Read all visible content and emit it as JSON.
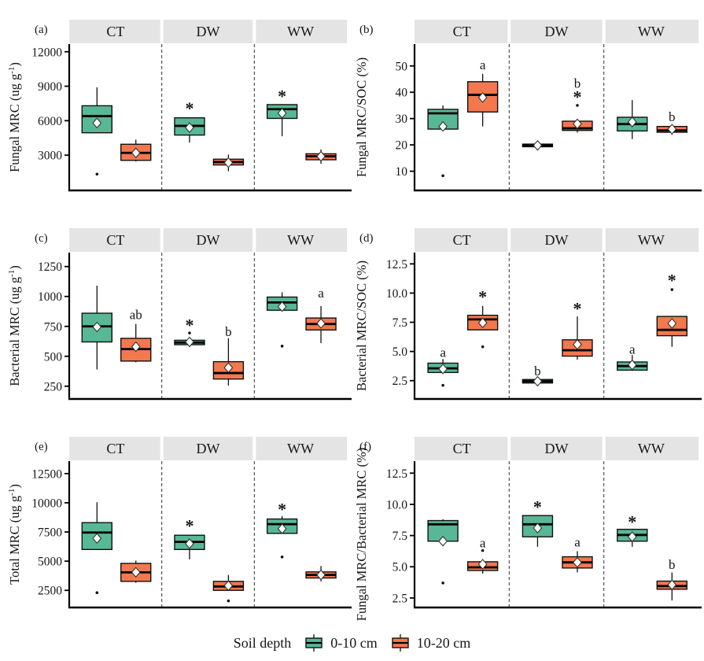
{
  "legend": {
    "title": "Soil depth",
    "entries": [
      {
        "label": "0-10 cm",
        "color": "#58b896"
      },
      {
        "label": "10-20 cm",
        "color": "#f3784e"
      }
    ]
  },
  "style": {
    "strip_bg": "#e4e4e4",
    "background": "#ffffff",
    "box_stroke": "#111111",
    "mean_marker": "white-diamond",
    "separator": "dashed"
  },
  "chart_data": [
    {
      "id": "a",
      "type": "boxplot",
      "label": "(a)",
      "ylabel": "Fungal MRC (ug g⁻¹)",
      "ylim": [
        0,
        12600
      ],
      "yticks": [
        {
          "v": 3000,
          "t": "3000"
        },
        {
          "v": 6000,
          "t": "6000"
        },
        {
          "v": 9000,
          "t": "9000"
        },
        {
          "v": 12000,
          "t": "12000"
        }
      ],
      "facets": [
        "CT",
        "DW",
        "WW"
      ],
      "boxes": [
        {
          "facet": 0,
          "depth": 0,
          "lo": 4950,
          "q1": 4950,
          "med": 6400,
          "q3": 7300,
          "hi": 8900,
          "mean": 5800,
          "outliers": [
            1350
          ],
          "ann": []
        },
        {
          "facet": 0,
          "depth": 1,
          "lo": 2450,
          "q1": 2550,
          "med": 3200,
          "q3": 3950,
          "hi": 4350,
          "mean": 3200,
          "outliers": [],
          "ann": []
        },
        {
          "facet": 1,
          "depth": 0,
          "lo": 4100,
          "q1": 4750,
          "med": 5550,
          "q3": 6250,
          "hi": 6250,
          "mean": 5400,
          "outliers": [],
          "ann": [
            {
              "t": "*",
              "y": 7200
            }
          ]
        },
        {
          "facet": 1,
          "depth": 1,
          "lo": 1600,
          "q1": 2150,
          "med": 2400,
          "q3": 2650,
          "hi": 3050,
          "mean": 2350,
          "outliers": [],
          "ann": []
        },
        {
          "facet": 2,
          "depth": 0,
          "lo": 4650,
          "q1": 6200,
          "med": 7000,
          "q3": 7400,
          "hi": 7450,
          "mean": 6650,
          "outliers": [],
          "ann": [
            {
              "t": "*",
              "y": 8250
            }
          ]
        },
        {
          "facet": 2,
          "depth": 1,
          "lo": 2250,
          "q1": 2600,
          "med": 2900,
          "q3": 3120,
          "hi": 3500,
          "mean": 2900,
          "outliers": [],
          "ann": []
        }
      ]
    },
    {
      "id": "b",
      "type": "boxplot",
      "label": "(b)",
      "ylabel": "Fungal MRC/SOC (%)",
      "ylim": [
        3,
        58
      ],
      "yticks": [
        {
          "v": 10,
          "t": "10"
        },
        {
          "v": 20,
          "t": "20"
        },
        {
          "v": 30,
          "t": "30"
        },
        {
          "v": 40,
          "t": "40"
        },
        {
          "v": 50,
          "t": "50"
        }
      ],
      "facets": [
        "CT",
        "DW",
        "WW"
      ],
      "boxes": [
        {
          "facet": 0,
          "depth": 0,
          "lo": 25.8,
          "q1": 26,
          "med": 32,
          "q3": 33.5,
          "hi": 35,
          "mean": 27,
          "outliers": [
            8.3
          ],
          "ann": []
        },
        {
          "facet": 0,
          "depth": 1,
          "lo": 27,
          "q1": 32.5,
          "med": 39,
          "q3": 44,
          "hi": 47,
          "mean": 38,
          "outliers": [],
          "ann": [
            {
              "t": "a",
              "y": 50.5
            }
          ]
        },
        {
          "facet": 1,
          "depth": 0,
          "lo": 18.3,
          "q1": 19.3,
          "med": 19.8,
          "q3": 20.3,
          "hi": 21.2,
          "mean": 19.8,
          "outliers": [],
          "ann": []
        },
        {
          "facet": 1,
          "depth": 1,
          "lo": 24.7,
          "q1": 25.5,
          "med": 26.3,
          "q3": 29,
          "hi": 29.2,
          "mean": 28,
          "outliers": [
            35
          ],
          "ann": [
            {
              "t": "b",
              "y": 43.5
            },
            {
              "t": "*",
              "y": 38.7
            }
          ]
        },
        {
          "facet": 2,
          "depth": 0,
          "lo": 22.2,
          "q1": 25.3,
          "med": 27.9,
          "q3": 30.5,
          "hi": 37,
          "mean": 28.7,
          "outliers": [],
          "ann": []
        },
        {
          "facet": 2,
          "depth": 1,
          "lo": 23.8,
          "q1": 24.8,
          "med": 25.5,
          "q3": 27,
          "hi": 27.5,
          "mean": 26,
          "outliers": [],
          "ann": [
            {
              "t": "b",
              "y": 30.8
            }
          ]
        }
      ]
    },
    {
      "id": "c",
      "type": "boxplot",
      "label": "(c)",
      "ylabel": "Bacterial MRC (ug g⁻¹)",
      "ylim": [
        150,
        1360
      ],
      "yticks": [
        {
          "v": 250,
          "t": "250"
        },
        {
          "v": 500,
          "t": "500"
        },
        {
          "v": 750,
          "t": "750"
        },
        {
          "v": 1000,
          "t": "1000"
        },
        {
          "v": 1250,
          "t": "1250"
        }
      ],
      "facets": [
        "CT",
        "DW",
        "WW"
      ],
      "boxes": [
        {
          "facet": 0,
          "depth": 0,
          "lo": 390,
          "q1": 620,
          "med": 750,
          "q3": 860,
          "hi": 1090,
          "mean": 745,
          "outliers": [],
          "ann": []
        },
        {
          "facet": 0,
          "depth": 1,
          "lo": 450,
          "q1": 460,
          "med": 560,
          "q3": 650,
          "hi": 770,
          "mean": 580,
          "outliers": [],
          "ann": [
            {
              "t": "ab",
              "y": 850
            }
          ]
        },
        {
          "facet": 1,
          "depth": 0,
          "lo": 580,
          "q1": 597,
          "med": 615,
          "q3": 634,
          "hi": 650,
          "mean": 620,
          "outliers": [
            695
          ],
          "ann": [
            {
              "t": "*",
              "y": 770
            }
          ]
        },
        {
          "facet": 1,
          "depth": 1,
          "lo": 255,
          "q1": 310,
          "med": 360,
          "q3": 455,
          "hi": 650,
          "mean": 405,
          "outliers": [],
          "ann": [
            {
              "t": "b",
              "y": 710
            }
          ]
        },
        {
          "facet": 2,
          "depth": 0,
          "lo": 880,
          "q1": 885,
          "med": 950,
          "q3": 995,
          "hi": 1035,
          "mean": 915,
          "outliers": [
            585
          ],
          "ann": []
        },
        {
          "facet": 2,
          "depth": 1,
          "lo": 610,
          "q1": 720,
          "med": 770,
          "q3": 820,
          "hi": 920,
          "mean": 775,
          "outliers": [],
          "ann": [
            {
              "t": "a",
              "y": 1030
            }
          ]
        }
      ]
    },
    {
      "id": "d",
      "type": "boxplot",
      "label": "(d)",
      "ylabel": "Bacterial MRC/SOC (%)",
      "ylim": [
        1.0,
        13.4
      ],
      "yticks": [
        {
          "v": 2.5,
          "t": "2.5"
        },
        {
          "v": 5,
          "t": "5.0"
        },
        {
          "v": 7.5,
          "t": "7.5"
        },
        {
          "v": 10,
          "t": "10.0"
        },
        {
          "v": 12.5,
          "t": "12.5"
        }
      ],
      "facets": [
        "CT",
        "DW",
        "WW"
      ],
      "boxes": [
        {
          "facet": 0,
          "depth": 0,
          "lo": 3.2,
          "q1": 3.2,
          "med": 3.55,
          "q3": 4.0,
          "hi": 4.35,
          "mean": 3.5,
          "outliers": [
            2.1
          ],
          "ann": [
            {
              "t": "a",
              "y": 4.95
            }
          ]
        },
        {
          "facet": 0,
          "depth": 1,
          "lo": 6.85,
          "q1": 6.85,
          "med": 7.75,
          "q3": 8.1,
          "hi": 8.9,
          "mean": 7.45,
          "outliers": [
            5.4
          ],
          "ann": [
            {
              "t": "*",
              "y": 9.8
            }
          ]
        },
        {
          "facet": 1,
          "depth": 0,
          "lo": 2.2,
          "q1": 2.3,
          "med": 2.45,
          "q3": 2.6,
          "hi": 2.7,
          "mean": 2.45,
          "outliers": [],
          "ann": [
            {
              "t": "b",
              "y": 3.35
            }
          ]
        },
        {
          "facet": 1,
          "depth": 1,
          "lo": 4.3,
          "q1": 4.6,
          "med": 5.1,
          "q3": 6.0,
          "hi": 8.0,
          "mean": 5.6,
          "outliers": [],
          "ann": [
            {
              "t": "*",
              "y": 8.8
            }
          ]
        },
        {
          "facet": 2,
          "depth": 0,
          "lo": 3.35,
          "q1": 3.4,
          "med": 3.75,
          "q3": 4.1,
          "hi": 4.7,
          "mean": 3.85,
          "outliers": [],
          "ann": [
            {
              "t": "a",
              "y": 5.2
            }
          ]
        },
        {
          "facet": 2,
          "depth": 1,
          "lo": 5.4,
          "q1": 6.35,
          "med": 6.85,
          "q3": 8.0,
          "hi": 8.0,
          "mean": 7.4,
          "outliers": [
            10.3
          ],
          "ann": [
            {
              "t": "*",
              "y": 11.2
            }
          ]
        }
      ]
    },
    {
      "id": "e",
      "type": "boxplot",
      "label": "(e)",
      "ylabel": "Total MRC (ug g⁻¹)",
      "ylim": [
        1100,
        13500
      ],
      "yticks": [
        {
          "v": 2500,
          "t": "2500"
        },
        {
          "v": 5000,
          "t": "5000"
        },
        {
          "v": 7500,
          "t": "7500"
        },
        {
          "v": 10000,
          "t": "10000"
        },
        {
          "v": 12500,
          "t": "12500"
        }
      ],
      "facets": [
        "CT",
        "DW",
        "WW"
      ],
      "boxes": [
        {
          "facet": 0,
          "depth": 0,
          "lo": 6000,
          "q1": 6000,
          "med": 7450,
          "q3": 8300,
          "hi": 10050,
          "mean": 6950,
          "outliers": [
            2300
          ],
          "ann": []
        },
        {
          "facet": 0,
          "depth": 1,
          "lo": 3150,
          "q1": 3270,
          "med": 4040,
          "q3": 4810,
          "hi": 5050,
          "mean": 4050,
          "outliers": [],
          "ann": []
        },
        {
          "facet": 1,
          "depth": 0,
          "lo": 5150,
          "q1": 6000,
          "med": 6650,
          "q3": 7220,
          "hi": 7250,
          "mean": 6500,
          "outliers": [],
          "ann": [
            {
              "t": "*",
              "y": 8150
            }
          ]
        },
        {
          "facet": 1,
          "depth": 1,
          "lo": 2450,
          "q1": 2500,
          "med": 2830,
          "q3": 3270,
          "hi": 3820,
          "mean": 2900,
          "outliers": [
            1600
          ],
          "ann": []
        },
        {
          "facet": 2,
          "depth": 0,
          "lo": 7350,
          "q1": 7380,
          "med": 8170,
          "q3": 8610,
          "hi": 8870,
          "mean": 7780,
          "outliers": [
            5360
          ],
          "ann": [
            {
              "t": "*",
              "y": 9550
            }
          ]
        },
        {
          "facet": 2,
          "depth": 1,
          "lo": 3270,
          "q1": 3560,
          "med": 3820,
          "q3": 4080,
          "hi": 4580,
          "mean": 3820,
          "outliers": [],
          "ann": []
        }
      ]
    },
    {
      "id": "f",
      "type": "boxplot",
      "label": "(f)",
      "ylabel": "Fungal MRC/Bacterial MRC (%)",
      "ylim": [
        1.8,
        13.4
      ],
      "yticks": [
        {
          "v": 2.5,
          "t": "2.5"
        },
        {
          "v": 5,
          "t": "5.0"
        },
        {
          "v": 7.5,
          "t": "7.5"
        },
        {
          "v": 10,
          "t": "10.0"
        },
        {
          "v": 12.5,
          "t": "12.5"
        }
      ],
      "facets": [
        "CT",
        "DW",
        "WW"
      ],
      "boxes": [
        {
          "facet": 0,
          "depth": 0,
          "lo": 7.0,
          "q1": 7.05,
          "med": 8.4,
          "q3": 8.7,
          "hi": 8.8,
          "mean": 7.05,
          "outliers": [
            3.7
          ],
          "ann": []
        },
        {
          "facet": 0,
          "depth": 1,
          "lo": 4.45,
          "q1": 4.7,
          "med": 4.95,
          "q3": 5.4,
          "hi": 5.6,
          "mean": 5.2,
          "outliers": [
            6.3
          ],
          "ann": [
            {
              "t": "a",
              "y": 6.95
            }
          ]
        },
        {
          "facet": 1,
          "depth": 0,
          "lo": 6.6,
          "q1": 7.4,
          "med": 8.4,
          "q3": 9.1,
          "hi": 9.15,
          "mean": 8.1,
          "outliers": [],
          "ann": [
            {
              "t": "*",
              "y": 9.9
            }
          ]
        },
        {
          "facet": 1,
          "depth": 1,
          "lo": 4.55,
          "q1": 4.9,
          "med": 5.35,
          "q3": 5.8,
          "hi": 6.25,
          "mean": 5.35,
          "outliers": [],
          "ann": [
            {
              "t": "a",
              "y": 7.0
            }
          ]
        },
        {
          "facet": 2,
          "depth": 0,
          "lo": 6.6,
          "q1": 7.05,
          "med": 7.55,
          "q3": 8.0,
          "hi": 8.05,
          "mean": 7.4,
          "outliers": [],
          "ann": [
            {
              "t": "*",
              "y": 8.7
            }
          ]
        },
        {
          "facet": 2,
          "depth": 1,
          "lo": 2.3,
          "q1": 3.2,
          "med": 3.45,
          "q3": 3.85,
          "hi": 4.55,
          "mean": 3.55,
          "outliers": [],
          "ann": [
            {
              "t": "b",
              "y": 5.2
            }
          ]
        }
      ]
    }
  ]
}
